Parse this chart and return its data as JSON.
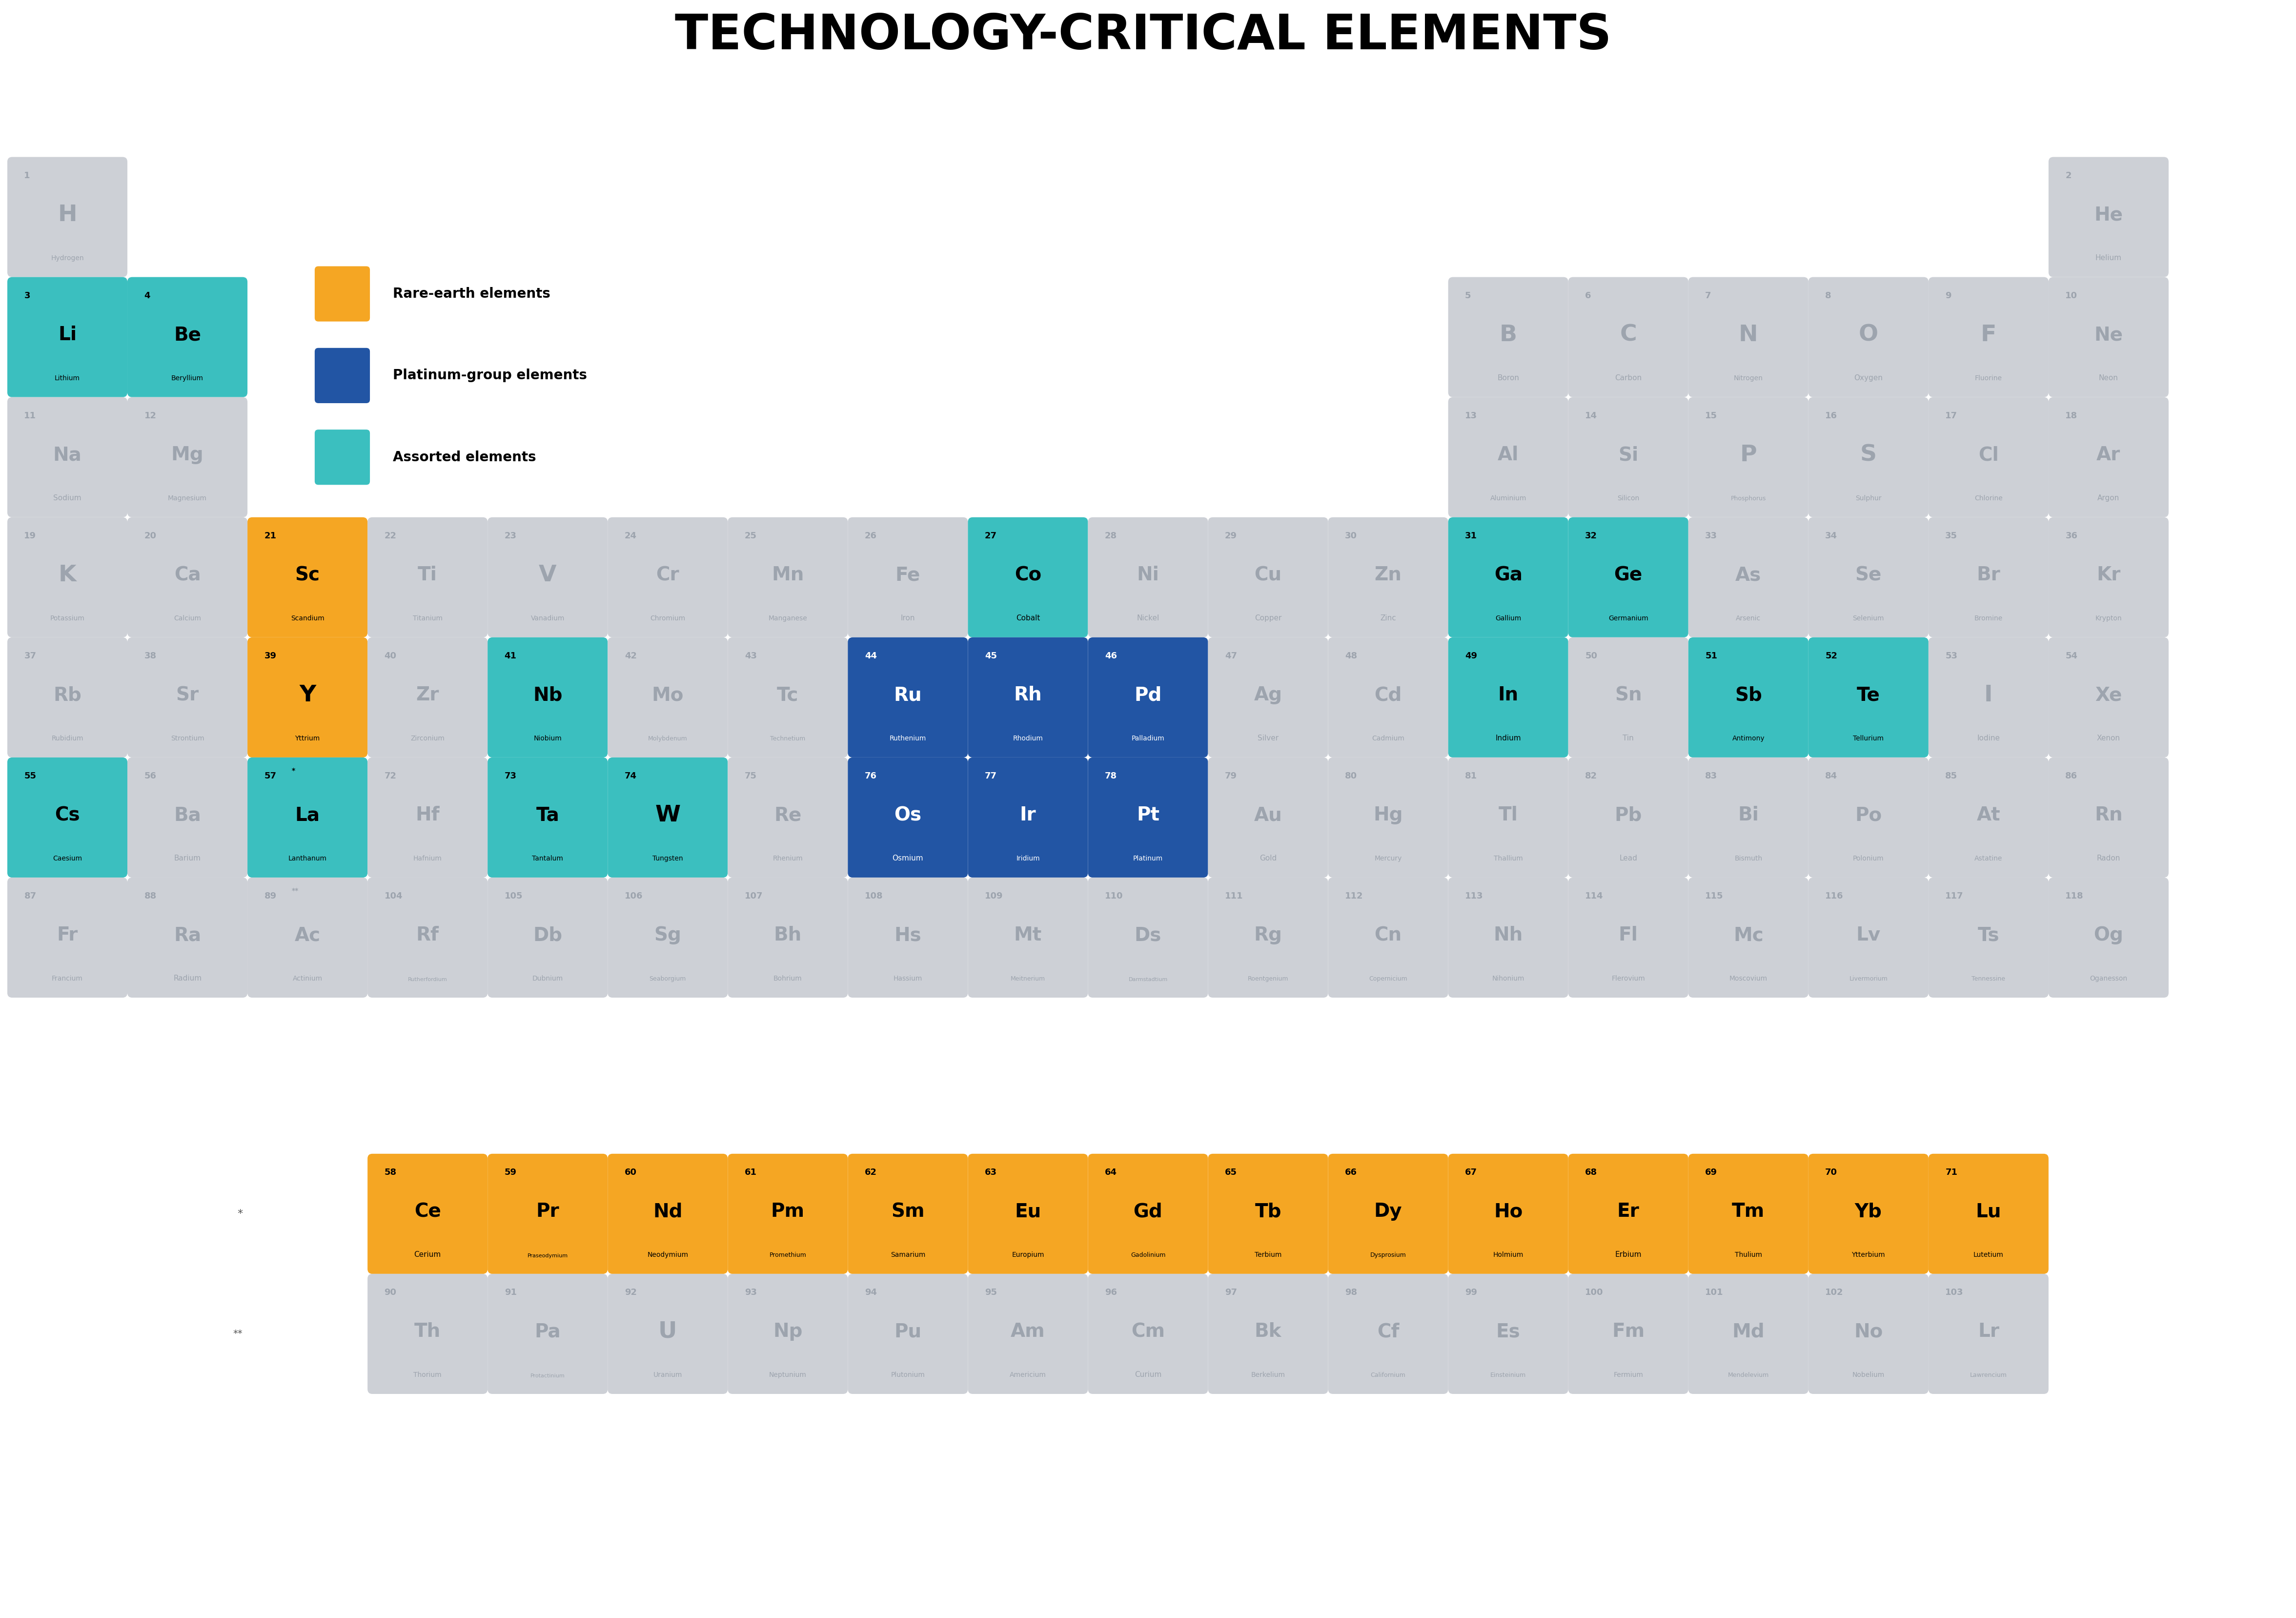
{
  "title": "TECHNOLOGY-CRITICAL ELEMENTS",
  "background_color": "#ffffff",
  "cell_bg_default": "#cdd0d6",
  "cell_bg_rare_earth": "#f5a623",
  "cell_bg_platinum": "#2255a4",
  "cell_bg_assorted": "#3bbfbf",
  "text_color_default": "#9da4ae",
  "text_color_highlight": "#000000",
  "text_color_platinum": "#ffffff",
  "legend_items": [
    {
      "label": "Rare-earth elements",
      "color": "#f5a623"
    },
    {
      "label": "Platinum-group elements",
      "color": "#2255a4"
    },
    {
      "label": "Assorted elements",
      "color": "#3bbfbf"
    }
  ],
  "elements": [
    {
      "number": 1,
      "symbol": "H",
      "name": "Hydrogen",
      "row": 1,
      "col": 1,
      "type": "default"
    },
    {
      "number": 2,
      "symbol": "He",
      "name": "Helium",
      "row": 1,
      "col": 18,
      "type": "default"
    },
    {
      "number": 3,
      "symbol": "Li",
      "name": "Lithium",
      "row": 2,
      "col": 1,
      "type": "assorted"
    },
    {
      "number": 4,
      "symbol": "Be",
      "name": "Beryllium",
      "row": 2,
      "col": 2,
      "type": "assorted"
    },
    {
      "number": 5,
      "symbol": "B",
      "name": "Boron",
      "row": 2,
      "col": 13,
      "type": "default"
    },
    {
      "number": 6,
      "symbol": "C",
      "name": "Carbon",
      "row": 2,
      "col": 14,
      "type": "default"
    },
    {
      "number": 7,
      "symbol": "N",
      "name": "Nitrogen",
      "row": 2,
      "col": 15,
      "type": "default"
    },
    {
      "number": 8,
      "symbol": "O",
      "name": "Oxygen",
      "row": 2,
      "col": 16,
      "type": "default"
    },
    {
      "number": 9,
      "symbol": "F",
      "name": "Fluorine",
      "row": 2,
      "col": 17,
      "type": "default"
    },
    {
      "number": 10,
      "symbol": "Ne",
      "name": "Neon",
      "row": 2,
      "col": 18,
      "type": "default"
    },
    {
      "number": 11,
      "symbol": "Na",
      "name": "Sodium",
      "row": 3,
      "col": 1,
      "type": "default"
    },
    {
      "number": 12,
      "symbol": "Mg",
      "name": "Magnesium",
      "row": 3,
      "col": 2,
      "type": "default"
    },
    {
      "number": 13,
      "symbol": "Al",
      "name": "Aluminium",
      "row": 3,
      "col": 13,
      "type": "default"
    },
    {
      "number": 14,
      "symbol": "Si",
      "name": "Silicon",
      "row": 3,
      "col": 14,
      "type": "default"
    },
    {
      "number": 15,
      "symbol": "P",
      "name": "Phosphorus",
      "row": 3,
      "col": 15,
      "type": "default"
    },
    {
      "number": 16,
      "symbol": "S",
      "name": "Sulphur",
      "row": 3,
      "col": 16,
      "type": "default"
    },
    {
      "number": 17,
      "symbol": "Cl",
      "name": "Chlorine",
      "row": 3,
      "col": 17,
      "type": "default"
    },
    {
      "number": 18,
      "symbol": "Ar",
      "name": "Argon",
      "row": 3,
      "col": 18,
      "type": "default"
    },
    {
      "number": 19,
      "symbol": "K",
      "name": "Potassium",
      "row": 4,
      "col": 1,
      "type": "default"
    },
    {
      "number": 20,
      "symbol": "Ca",
      "name": "Calcium",
      "row": 4,
      "col": 2,
      "type": "default"
    },
    {
      "number": 21,
      "symbol": "Sc",
      "name": "Scandium",
      "row": 4,
      "col": 3,
      "type": "rare_earth"
    },
    {
      "number": 22,
      "symbol": "Ti",
      "name": "Titanium",
      "row": 4,
      "col": 4,
      "type": "default"
    },
    {
      "number": 23,
      "symbol": "V",
      "name": "Vanadium",
      "row": 4,
      "col": 5,
      "type": "default"
    },
    {
      "number": 24,
      "symbol": "Cr",
      "name": "Chromium",
      "row": 4,
      "col": 6,
      "type": "default"
    },
    {
      "number": 25,
      "symbol": "Mn",
      "name": "Manganese",
      "row": 4,
      "col": 7,
      "type": "default"
    },
    {
      "number": 26,
      "symbol": "Fe",
      "name": "Iron",
      "row": 4,
      "col": 8,
      "type": "default"
    },
    {
      "number": 27,
      "symbol": "Co",
      "name": "Cobalt",
      "row": 4,
      "col": 9,
      "type": "assorted"
    },
    {
      "number": 28,
      "symbol": "Ni",
      "name": "Nickel",
      "row": 4,
      "col": 10,
      "type": "default"
    },
    {
      "number": 29,
      "symbol": "Cu",
      "name": "Copper",
      "row": 4,
      "col": 11,
      "type": "default"
    },
    {
      "number": 30,
      "symbol": "Zn",
      "name": "Zinc",
      "row": 4,
      "col": 12,
      "type": "default"
    },
    {
      "number": 31,
      "symbol": "Ga",
      "name": "Gallium",
      "row": 4,
      "col": 13,
      "type": "assorted"
    },
    {
      "number": 32,
      "symbol": "Ge",
      "name": "Germanium",
      "row": 4,
      "col": 14,
      "type": "assorted"
    },
    {
      "number": 33,
      "symbol": "As",
      "name": "Arsenic",
      "row": 4,
      "col": 15,
      "type": "default"
    },
    {
      "number": 34,
      "symbol": "Se",
      "name": "Selenium",
      "row": 4,
      "col": 16,
      "type": "default"
    },
    {
      "number": 35,
      "symbol": "Br",
      "name": "Bromine",
      "row": 4,
      "col": 17,
      "type": "default"
    },
    {
      "number": 36,
      "symbol": "Kr",
      "name": "Krypton",
      "row": 4,
      "col": 18,
      "type": "default"
    },
    {
      "number": 37,
      "symbol": "Rb",
      "name": "Rubidium",
      "row": 5,
      "col": 1,
      "type": "default"
    },
    {
      "number": 38,
      "symbol": "Sr",
      "name": "Strontium",
      "row": 5,
      "col": 2,
      "type": "default"
    },
    {
      "number": 39,
      "symbol": "Y",
      "name": "Yttrium",
      "row": 5,
      "col": 3,
      "type": "rare_earth"
    },
    {
      "number": 40,
      "symbol": "Zr",
      "name": "Zirconium",
      "row": 5,
      "col": 4,
      "type": "default"
    },
    {
      "number": 41,
      "symbol": "Nb",
      "name": "Niobium",
      "row": 5,
      "col": 5,
      "type": "assorted"
    },
    {
      "number": 42,
      "symbol": "Mo",
      "name": "Molybdenum",
      "row": 5,
      "col": 6,
      "type": "default"
    },
    {
      "number": 43,
      "symbol": "Tc",
      "name": "Technetium",
      "row": 5,
      "col": 7,
      "type": "default"
    },
    {
      "number": 44,
      "symbol": "Ru",
      "name": "Ruthenium",
      "row": 5,
      "col": 8,
      "type": "platinum"
    },
    {
      "number": 45,
      "symbol": "Rh",
      "name": "Rhodium",
      "row": 5,
      "col": 9,
      "type": "platinum"
    },
    {
      "number": 46,
      "symbol": "Pd",
      "name": "Palladium",
      "row": 5,
      "col": 10,
      "type": "platinum"
    },
    {
      "number": 47,
      "symbol": "Ag",
      "name": "Silver",
      "row": 5,
      "col": 11,
      "type": "default"
    },
    {
      "number": 48,
      "symbol": "Cd",
      "name": "Cadmium",
      "row": 5,
      "col": 12,
      "type": "default"
    },
    {
      "number": 49,
      "symbol": "In",
      "name": "Indium",
      "row": 5,
      "col": 13,
      "type": "assorted"
    },
    {
      "number": 50,
      "symbol": "Sn",
      "name": "Tin",
      "row": 5,
      "col": 14,
      "type": "default"
    },
    {
      "number": 51,
      "symbol": "Sb",
      "name": "Antimony",
      "row": 5,
      "col": 15,
      "type": "assorted"
    },
    {
      "number": 52,
      "symbol": "Te",
      "name": "Tellurium",
      "row": 5,
      "col": 16,
      "type": "assorted"
    },
    {
      "number": 53,
      "symbol": "I",
      "name": "Iodine",
      "row": 5,
      "col": 17,
      "type": "default"
    },
    {
      "number": 54,
      "symbol": "Xe",
      "name": "Xenon",
      "row": 5,
      "col": 18,
      "type": "default"
    },
    {
      "number": 55,
      "symbol": "Cs",
      "name": "Caesium",
      "row": 6,
      "col": 1,
      "type": "assorted"
    },
    {
      "number": 56,
      "symbol": "Ba",
      "name": "Barium",
      "row": 6,
      "col": 2,
      "type": "default"
    },
    {
      "number": 57,
      "symbol": "La",
      "name": "Lanthanum",
      "row": 6,
      "col": 3,
      "type": "assorted",
      "star": true
    },
    {
      "number": 72,
      "symbol": "Hf",
      "name": "Hafnium",
      "row": 6,
      "col": 4,
      "type": "default"
    },
    {
      "number": 73,
      "symbol": "Ta",
      "name": "Tantalum",
      "row": 6,
      "col": 5,
      "type": "assorted"
    },
    {
      "number": 74,
      "symbol": "W",
      "name": "Tungsten",
      "row": 6,
      "col": 6,
      "type": "assorted"
    },
    {
      "number": 75,
      "symbol": "Re",
      "name": "Rhenium",
      "row": 6,
      "col": 7,
      "type": "default"
    },
    {
      "number": 76,
      "symbol": "Os",
      "name": "Osmium",
      "row": 6,
      "col": 8,
      "type": "platinum"
    },
    {
      "number": 77,
      "symbol": "Ir",
      "name": "Iridium",
      "row": 6,
      "col": 9,
      "type": "platinum"
    },
    {
      "number": 78,
      "symbol": "Pt",
      "name": "Platinum",
      "row": 6,
      "col": 10,
      "type": "platinum"
    },
    {
      "number": 79,
      "symbol": "Au",
      "name": "Gold",
      "row": 6,
      "col": 11,
      "type": "default"
    },
    {
      "number": 80,
      "symbol": "Hg",
      "name": "Mercury",
      "row": 6,
      "col": 12,
      "type": "default"
    },
    {
      "number": 81,
      "symbol": "Tl",
      "name": "Thallium",
      "row": 6,
      "col": 13,
      "type": "default"
    },
    {
      "number": 82,
      "symbol": "Pb",
      "name": "Lead",
      "row": 6,
      "col": 14,
      "type": "default"
    },
    {
      "number": 83,
      "symbol": "Bi",
      "name": "Bismuth",
      "row": 6,
      "col": 15,
      "type": "default"
    },
    {
      "number": 84,
      "symbol": "Po",
      "name": "Polonium",
      "row": 6,
      "col": 16,
      "type": "default"
    },
    {
      "number": 85,
      "symbol": "At",
      "name": "Astatine",
      "row": 6,
      "col": 17,
      "type": "default"
    },
    {
      "number": 86,
      "symbol": "Rn",
      "name": "Radon",
      "row": 6,
      "col": 18,
      "type": "default"
    },
    {
      "number": 87,
      "symbol": "Fr",
      "name": "Francium",
      "row": 7,
      "col": 1,
      "type": "default"
    },
    {
      "number": 88,
      "symbol": "Ra",
      "name": "Radium",
      "row": 7,
      "col": 2,
      "type": "default"
    },
    {
      "number": 89,
      "symbol": "Ac",
      "name": "Actinium",
      "row": 7,
      "col": 3,
      "type": "default",
      "dstar": true
    },
    {
      "number": 104,
      "symbol": "Rf",
      "name": "Rutherfordium",
      "row": 7,
      "col": 4,
      "type": "default"
    },
    {
      "number": 105,
      "symbol": "Db",
      "name": "Dubnium",
      "row": 7,
      "col": 5,
      "type": "default"
    },
    {
      "number": 106,
      "symbol": "Sg",
      "name": "Seaborgium",
      "row": 7,
      "col": 6,
      "type": "default"
    },
    {
      "number": 107,
      "symbol": "Bh",
      "name": "Bohrium",
      "row": 7,
      "col": 7,
      "type": "default"
    },
    {
      "number": 108,
      "symbol": "Hs",
      "name": "Hassium",
      "row": 7,
      "col": 8,
      "type": "default"
    },
    {
      "number": 109,
      "symbol": "Mt",
      "name": "Meitnerium",
      "row": 7,
      "col": 9,
      "type": "default"
    },
    {
      "number": 110,
      "symbol": "Ds",
      "name": "Darmstadtium",
      "row": 7,
      "col": 10,
      "type": "default"
    },
    {
      "number": 111,
      "symbol": "Rg",
      "name": "Roentgenium",
      "row": 7,
      "col": 11,
      "type": "default"
    },
    {
      "number": 112,
      "symbol": "Cn",
      "name": "Copernicium",
      "row": 7,
      "col": 12,
      "type": "default"
    },
    {
      "number": 113,
      "symbol": "Nh",
      "name": "Nihonium",
      "row": 7,
      "col": 13,
      "type": "default"
    },
    {
      "number": 114,
      "symbol": "Fl",
      "name": "Flerovium",
      "row": 7,
      "col": 14,
      "type": "default"
    },
    {
      "number": 115,
      "symbol": "Mc",
      "name": "Moscovium",
      "row": 7,
      "col": 15,
      "type": "default"
    },
    {
      "number": 116,
      "symbol": "Lv",
      "name": "Livermorium",
      "row": 7,
      "col": 16,
      "type": "default"
    },
    {
      "number": 117,
      "symbol": "Ts",
      "name": "Tennessine",
      "row": 7,
      "col": 17,
      "type": "default"
    },
    {
      "number": 118,
      "symbol": "Og",
      "name": "Oganesson",
      "row": 7,
      "col": 18,
      "type": "default"
    },
    {
      "number": 58,
      "symbol": "Ce",
      "name": "Cerium",
      "row": 9,
      "col": 4,
      "type": "rare_earth"
    },
    {
      "number": 59,
      "symbol": "Pr",
      "name": "Praseodymium",
      "row": 9,
      "col": 5,
      "type": "rare_earth"
    },
    {
      "number": 60,
      "symbol": "Nd",
      "name": "Neodymium",
      "row": 9,
      "col": 6,
      "type": "rare_earth"
    },
    {
      "number": 61,
      "symbol": "Pm",
      "name": "Promethium",
      "row": 9,
      "col": 7,
      "type": "rare_earth"
    },
    {
      "number": 62,
      "symbol": "Sm",
      "name": "Samarium",
      "row": 9,
      "col": 8,
      "type": "rare_earth"
    },
    {
      "number": 63,
      "symbol": "Eu",
      "name": "Europium",
      "row": 9,
      "col": 9,
      "type": "rare_earth"
    },
    {
      "number": 64,
      "symbol": "Gd",
      "name": "Gadolinium",
      "row": 9,
      "col": 10,
      "type": "rare_earth"
    },
    {
      "number": 65,
      "symbol": "Tb",
      "name": "Terbium",
      "row": 9,
      "col": 11,
      "type": "rare_earth"
    },
    {
      "number": 66,
      "symbol": "Dy",
      "name": "Dysprosium",
      "row": 9,
      "col": 12,
      "type": "rare_earth"
    },
    {
      "number": 67,
      "symbol": "Ho",
      "name": "Holmium",
      "row": 9,
      "col": 13,
      "type": "rare_earth"
    },
    {
      "number": 68,
      "symbol": "Er",
      "name": "Erbium",
      "row": 9,
      "col": 14,
      "type": "rare_earth"
    },
    {
      "number": 69,
      "symbol": "Tm",
      "name": "Thulium",
      "row": 9,
      "col": 15,
      "type": "rare_earth"
    },
    {
      "number": 70,
      "symbol": "Yb",
      "name": "Ytterbium",
      "row": 9,
      "col": 16,
      "type": "rare_earth"
    },
    {
      "number": 71,
      "symbol": "Lu",
      "name": "Lutetium",
      "row": 9,
      "col": 17,
      "type": "rare_earth"
    },
    {
      "number": 90,
      "symbol": "Th",
      "name": "Thorium",
      "row": 10,
      "col": 4,
      "type": "default"
    },
    {
      "number": 91,
      "symbol": "Pa",
      "name": "Protactinium",
      "row": 10,
      "col": 5,
      "type": "default"
    },
    {
      "number": 92,
      "symbol": "U",
      "name": "Uranium",
      "row": 10,
      "col": 6,
      "type": "default"
    },
    {
      "number": 93,
      "symbol": "Np",
      "name": "Neptunium",
      "row": 10,
      "col": 7,
      "type": "default"
    },
    {
      "number": 94,
      "symbol": "Pu",
      "name": "Plutonium",
      "row": 10,
      "col": 8,
      "type": "default"
    },
    {
      "number": 95,
      "symbol": "Am",
      "name": "Americium",
      "row": 10,
      "col": 9,
      "type": "default"
    },
    {
      "number": 96,
      "symbol": "Cm",
      "name": "Curium",
      "row": 10,
      "col": 10,
      "type": "default"
    },
    {
      "number": 97,
      "symbol": "Bk",
      "name": "Berkelium",
      "row": 10,
      "col": 11,
      "type": "default"
    },
    {
      "number": 98,
      "symbol": "Cf",
      "name": "Californium",
      "row": 10,
      "col": 12,
      "type": "default"
    },
    {
      "number": 99,
      "symbol": "Es",
      "name": "Einsteinium",
      "row": 10,
      "col": 13,
      "type": "default"
    },
    {
      "number": 100,
      "symbol": "Fm",
      "name": "Fermium",
      "row": 10,
      "col": 14,
      "type": "default"
    },
    {
      "number": 101,
      "symbol": "Md",
      "name": "Mendelevium",
      "row": 10,
      "col": 15,
      "type": "default"
    },
    {
      "number": 102,
      "symbol": "No",
      "name": "Nobelium",
      "row": 10,
      "col": 16,
      "type": "default"
    },
    {
      "number": 103,
      "symbol": "Lr",
      "name": "Lawrencium",
      "row": 10,
      "col": 17,
      "type": "default"
    }
  ]
}
